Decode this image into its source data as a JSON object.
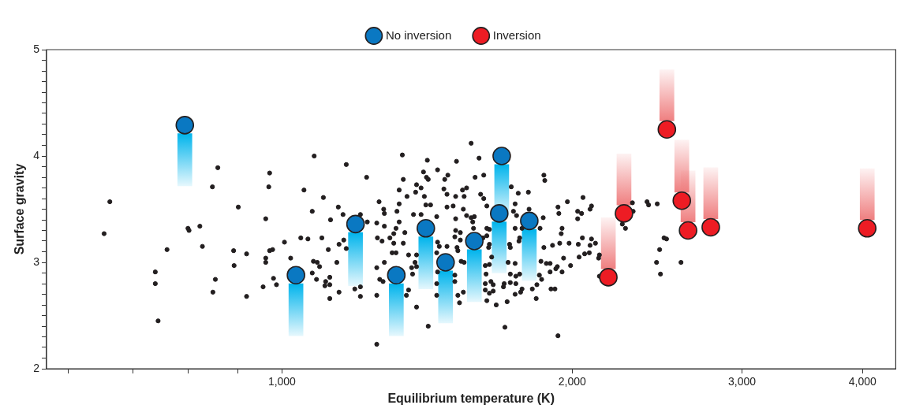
{
  "chart_data": {
    "type": "scatter",
    "xlabel": "Equilibrium temperature (K)",
    "ylabel": "Surface gravity",
    "log": "x",
    "xlim": [
      570,
      4330
    ],
    "ylim": [
      2,
      5
    ],
    "xticks": [
      {
        "value": 600,
        "label": null
      },
      {
        "value": 700,
        "label": null
      },
      {
        "value": 800,
        "label": null
      },
      {
        "value": 900,
        "label": null
      },
      {
        "value": 1000,
        "label": "1,000"
      },
      {
        "value": 2000,
        "label": "2,000"
      },
      {
        "value": 3000,
        "label": "3,000"
      },
      {
        "value": 4000,
        "label": "4,000"
      }
    ],
    "yticks": [
      2,
      {
        "value": 2.1,
        "label": null
      },
      {
        "value": 2.2,
        "label": null
      },
      {
        "value": 2.3,
        "label": null
      },
      {
        "value": 2.4,
        "label": null
      },
      {
        "value": 2.5,
        "label": null
      },
      {
        "value": 2.6,
        "label": null
      },
      {
        "value": 2.7,
        "label": null
      },
      {
        "value": 2.8,
        "label": null
      },
      {
        "value": 2.9,
        "label": null
      },
      3,
      {
        "value": 3.1,
        "label": null
      },
      {
        "value": 3.2,
        "label": null
      },
      {
        "value": 3.3,
        "label": null
      },
      {
        "value": 3.4,
        "label": null
      },
      {
        "value": 3.5,
        "label": null
      },
      {
        "value": 3.6,
        "label": null
      },
      {
        "value": 3.7,
        "label": null
      },
      {
        "value": 3.8,
        "label": null
      },
      {
        "value": 3.9,
        "label": null
      },
      4,
      {
        "value": 4.1,
        "label": null
      },
      {
        "value": 4.2,
        "label": null
      },
      {
        "value": 4.3,
        "label": null
      },
      {
        "value": 4.4,
        "label": null
      },
      {
        "value": 4.5,
        "label": null
      },
      {
        "value": 4.6,
        "label": null
      },
      {
        "value": 4.7,
        "label": null
      },
      {
        "value": 4.8,
        "label": null
      },
      {
        "value": 4.9,
        "label": null
      },
      5
    ],
    "grid": false,
    "legend": "top",
    "marker": "circle",
    "series": [
      {
        "color": "#231f20",
        "x": [
          663,
          654,
          858,
          847,
          971,
          969,
          1054,
          1080,
          901,
          962,
          1075,
          799,
          801,
          822,
          760,
          827,
          891,
          919,
          1006,
          1046,
          1064,
          971,
          978,
          962,
          962,
          1021,
          892,
          1078,
          1075,
          739,
          739,
          853,
          848,
          919,
          956,
          980,
          987,
          744,
          1166,
          1333,
          1415,
          1517,
          1571,
          1601,
          1224,
          1402,
          1412,
          1418,
          1450,
          1486,
          1475,
          1336,
          1619,
          1586,
          1379,
          1394,
          1323,
          1376,
          1472,
          1554,
          1539,
          1483,
          1545,
          1514,
          1607,
          1619,
          1104,
          1261,
          1348,
          1405,
          1323,
          1410,
          1426,
          1483,
          1505,
          1542,
          1631,
          1275,
          1144,
          1316,
          1277,
          1206,
          1157,
          1369,
          1394,
          1447,
          1514,
          1554,
          1571,
          1583,
          1123,
          1226,
          1254,
          1277,
          1323,
          1313,
          1341,
          1306,
          1577,
          1580,
          1631,
          1514,
          1531,
          1511,
          1531,
          1616,
          1631,
          1100,
          1159,
          1146,
          1117,
          1166,
          1256,
          1270,
          1294,
          1306,
          1336,
          1301,
          1313,
          1353,
          1450,
          1456,
          1483,
          1447,
          1519,
          1522,
          1641,
          1638,
          1088,
          1094,
          1140,
          1086,
          1121,
          1110,
          1108,
          1121,
          1146,
          1121,
          1190,
          1206,
          1206,
          1254,
          1277,
          1263,
          1273,
          1254,
          1379,
          1374,
          1379,
          1363,
          1366,
          1353,
          1346,
          1379,
          1418,
          1254,
          1511,
          1511,
          1522,
          1528,
          1542,
          1534,
          1545,
          1625,
          1628,
          1625,
          1625,
          1631,
          1641,
          1647,
          1650,
          1641,
          1450,
          1447,
          1447,
          1869,
          1873,
          1729,
          1758,
          1801,
          1977,
          2052,
          1933,
          1937,
          2026,
          2045,
          2094,
          2087,
          2026,
          1745,
          1738,
          1751,
          1804,
          1866,
          1852,
          1952,
          1948,
          1745,
          1764,
          1761,
          1725,
          1869,
          1908,
          1941,
          1985,
          2029,
          2049,
          2094,
          2087,
          2114,
          2083,
          2060,
          2033,
          1959,
          2134,
          2130,
          1856,
          1880,
          1897,
          1930,
          1923,
          1992,
          1897,
          1952,
          1849,
          1859,
          1764,
          1745,
          1725,
          1748,
          1725,
          1748,
          1838,
          1774,
          1768,
          1818,
          1901,
          1919,
          1835,
          1745,
          1712,
          1668,
          1703,
          1933,
          1656,
          1656,
          1697,
          1700,
          2309,
          2313,
          2254,
          2271,
          2391,
          2400,
          2450,
          2490,
          2505,
          2464,
          2446,
          2469,
          2134,
          2593,
          1641,
          1716,
          1722,
          1774
        ],
        "values": [
          3.57,
          3.27,
          3.89,
          3.71,
          3.84,
          3.71,
          3.68,
          4.0,
          3.52,
          3.41,
          3.48,
          3.32,
          3.3,
          3.34,
          3.12,
          3.15,
          3.11,
          3.08,
          3.19,
          3.23,
          3.22,
          3.11,
          3.12,
          3.04,
          3.0,
          3.04,
          2.97,
          3.01,
          2.9,
          2.91,
          2.8,
          2.84,
          2.72,
          2.68,
          2.77,
          2.85,
          2.79,
          2.45,
          3.92,
          4.01,
          3.96,
          3.95,
          4.12,
          3.98,
          3.8,
          3.85,
          3.8,
          3.78,
          3.87,
          3.82,
          3.78,
          3.78,
          3.82,
          3.8,
          3.73,
          3.7,
          3.68,
          3.66,
          3.69,
          3.7,
          3.68,
          3.64,
          3.62,
          3.62,
          3.64,
          3.6,
          3.61,
          3.57,
          3.62,
          3.62,
          3.55,
          3.54,
          3.54,
          3.52,
          3.53,
          3.5,
          3.53,
          3.5,
          3.52,
          3.48,
          3.46,
          3.45,
          3.45,
          3.45,
          3.45,
          3.43,
          3.41,
          3.44,
          3.42,
          3.43,
          3.4,
          3.38,
          3.37,
          3.34,
          3.38,
          3.32,
          3.28,
          3.27,
          3.38,
          3.32,
          3.32,
          3.3,
          3.28,
          3.24,
          3.21,
          3.23,
          3.25,
          3.23,
          3.21,
          3.17,
          3.12,
          3.13,
          3.23,
          3.2,
          3.23,
          3.18,
          3.18,
          3.09,
          3.09,
          3.07,
          3.19,
          3.15,
          3.15,
          3.09,
          3.14,
          3.11,
          3.17,
          3.14,
          3.0,
          2.96,
          3.0,
          2.84,
          2.86,
          2.82,
          2.78,
          2.79,
          2.72,
          2.66,
          2.75,
          2.77,
          2.68,
          2.95,
          3.0,
          2.84,
          2.82,
          2.69,
          3.07,
          3.0,
          2.96,
          2.95,
          2.89,
          2.74,
          2.69,
          2.58,
          2.4,
          2.23,
          2.88,
          2.82,
          2.69,
          2.62,
          2.72,
          3.01,
          3.0,
          2.97,
          2.89,
          2.8,
          2.74,
          2.64,
          2.71,
          2.82,
          3.05,
          2.98,
          2.91,
          2.8,
          2.69,
          3.82,
          3.77,
          3.71,
          3.65,
          3.66,
          3.57,
          3.61,
          3.52,
          3.46,
          3.48,
          3.46,
          3.53,
          3.5,
          3.41,
          3.55,
          3.48,
          3.44,
          3.5,
          3.42,
          3.32,
          3.32,
          3.27,
          3.32,
          3.23,
          3.2,
          3.14,
          3.14,
          3.16,
          3.18,
          3.18,
          3.17,
          3.23,
          3.22,
          3.16,
          3.18,
          3.09,
          3.08,
          3.05,
          3.04,
          3.07,
          3.04,
          3.01,
          2.99,
          2.99,
          2.96,
          2.94,
          2.97,
          2.91,
          2.91,
          2.88,
          2.84,
          2.89,
          2.99,
          2.89,
          2.87,
          2.81,
          2.8,
          2.79,
          2.75,
          2.72,
          2.75,
          2.75,
          2.75,
          2.66,
          2.7,
          2.63,
          2.6,
          2.39,
          2.31,
          2.79,
          2.73,
          2.77,
          2.8,
          3.56,
          3.48,
          3.36,
          3.32,
          3.57,
          3.54,
          3.55,
          3.23,
          3.22,
          3.12,
          3.0,
          2.89,
          2.87,
          3.0,
          3.31,
          3.0,
          3.17,
          3.32
        ]
      },
      {
        "name": "No inversion",
        "color": "#0a78c2",
        "x": [
          793,
          1034,
          1192,
          1314,
          1410,
          1478,
          1583,
          1680,
          1690,
          1805
        ],
        "values": [
          4.29,
          2.88,
          3.36,
          2.88,
          3.32,
          3.0,
          3.2,
          3.46,
          4.0,
          3.39
        ]
      },
      {
        "type": "bar",
        "color": "#00b4ec",
        "x": [
          793,
          1034,
          1192,
          1314,
          1410,
          1478,
          1583,
          1680,
          1690,
          1805
        ],
        "base": [
          3.72,
          2.31,
          2.78,
          2.31,
          2.75,
          2.43,
          2.63,
          2.9,
          3.43,
          2.83
        ],
        "values": [
          0.49,
          0.49,
          0.5,
          0.49,
          0.49,
          0.49,
          0.49,
          0.48,
          0.49,
          0.48
        ]
      },
      {
        "name": "Inversion",
        "color": "#ed1c24",
        "x": [
          2180,
          2263,
          2507,
          2598,
          2637,
          2784,
          4045
        ],
        "values": [
          2.86,
          3.46,
          4.25,
          3.58,
          3.3,
          3.33,
          3.32
        ]
      },
      {
        "type": "bar",
        "color": "#ef7f80",
        "x": [
          2180,
          2263,
          2507,
          2598,
          2637,
          2784,
          4045
        ],
        "base": [
          2.94,
          3.54,
          4.33,
          3.66,
          3.38,
          3.41,
          3.4
        ],
        "values": [
          0.48,
          0.48,
          0.48,
          0.49,
          0.48,
          0.48,
          0.48
        ]
      }
    ]
  }
}
